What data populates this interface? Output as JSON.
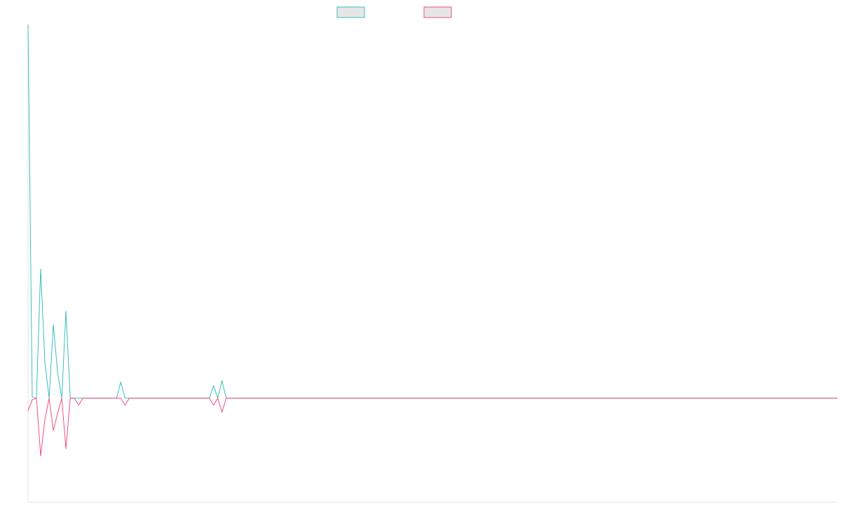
{
  "chart_data": {
    "type": "line",
    "title": "",
    "xlabel": "",
    "ylabel": "",
    "ylim": [
      -148,
      532
    ],
    "grid": false,
    "legend": {
      "placement": "top-center"
    },
    "x": [
      0,
      1,
      2,
      3,
      4,
      5,
      6,
      7,
      8,
      9,
      10,
      11,
      12,
      13,
      14,
      15,
      16,
      17,
      18,
      19,
      20,
      21,
      22,
      23,
      24,
      25,
      26,
      27,
      28,
      29,
      30,
      31,
      32,
      33,
      34,
      35,
      36,
      37,
      38,
      39,
      40,
      41,
      42,
      43,
      44,
      45,
      46,
      47,
      48,
      49,
      50,
      51,
      52,
      53,
      54,
      55,
      56,
      57,
      58,
      59,
      60,
      61,
      62,
      63,
      64,
      65,
      66,
      67,
      68,
      69,
      70,
      71,
      72,
      73,
      74,
      75,
      76,
      77,
      78,
      79,
      80,
      81,
      82,
      83,
      84,
      85,
      86,
      87,
      88,
      89,
      90,
      91,
      92,
      93,
      94,
      95,
      96,
      97,
      98,
      99,
      100,
      101,
      102,
      103,
      104,
      105,
      106,
      107,
      108,
      109,
      110,
      111,
      112,
      113,
      114,
      115,
      116,
      117,
      118,
      119,
      120,
      121,
      122,
      123,
      124,
      125,
      126,
      127,
      128,
      129,
      130,
      131,
      132,
      133,
      134,
      135,
      136,
      137,
      138,
      139,
      140,
      141,
      142,
      143,
      144,
      145,
      146,
      147,
      148,
      149,
      150,
      151,
      152,
      153,
      154,
      155,
      156,
      157,
      158,
      159,
      160,
      161,
      162,
      163,
      164,
      165,
      166,
      167,
      168,
      169,
      170,
      171,
      172,
      173,
      174,
      175,
      176,
      177,
      178,
      179,
      180,
      181,
      182,
      183,
      184,
      185,
      186,
      187,
      188,
      189,
      190,
      191,
      192
    ],
    "series": [
      {
        "color": "#3dbdbd",
        "values": [
          532,
          2,
          0,
          184,
          50,
          0,
          105,
          37,
          0,
          124,
          0,
          0,
          0,
          0,
          0,
          0,
          0,
          0,
          0,
          0,
          0,
          0,
          23,
          0,
          0,
          0,
          0,
          0,
          0,
          0,
          0,
          0,
          0,
          0,
          0,
          0,
          0,
          0,
          0,
          0,
          0,
          0,
          0,
          0,
          18,
          0,
          25,
          0,
          0,
          0,
          0,
          0,
          0,
          0,
          0,
          0,
          0,
          0,
          0,
          0,
          0,
          0,
          0,
          0,
          0,
          0,
          0,
          0,
          0,
          0,
          0,
          0,
          0,
          0,
          0,
          0,
          0,
          0,
          0,
          0,
          0,
          0,
          0,
          0,
          0,
          0,
          0,
          0,
          0,
          0,
          0,
          0,
          0,
          0,
          0,
          0,
          0,
          0,
          0,
          0,
          0,
          0,
          0,
          0,
          0,
          0,
          0,
          0,
          0,
          0,
          0,
          0,
          0,
          0,
          0,
          0,
          0,
          0,
          0,
          0,
          0,
          0,
          0,
          0,
          0,
          0,
          0,
          0,
          0,
          0,
          0,
          0,
          0,
          0,
          0,
          0,
          0,
          0,
          0,
          0,
          0,
          0,
          0,
          0,
          0,
          0,
          0,
          0,
          0,
          0,
          0,
          0,
          0,
          0,
          0,
          0,
          0,
          0,
          0,
          0,
          0,
          0,
          0,
          0,
          0,
          0,
          0,
          0,
          0,
          0,
          0,
          0,
          0,
          0,
          0,
          0,
          0,
          0,
          0,
          0,
          0,
          0,
          0,
          0,
          0,
          0,
          0,
          0,
          0,
          0,
          0,
          0,
          0
        ]
      },
      {
        "color": "#f0507a",
        "values": [
          -18,
          -2,
          0,
          -82,
          -30,
          0,
          -46,
          -22,
          0,
          -72,
          0,
          0,
          -10,
          0,
          0,
          0,
          0,
          0,
          0,
          0,
          0,
          0,
          0,
          -10,
          0,
          0,
          0,
          0,
          0,
          0,
          0,
          0,
          0,
          0,
          0,
          0,
          0,
          0,
          0,
          0,
          0,
          0,
          0,
          0,
          -10,
          0,
          -20,
          0,
          0,
          0,
          0,
          0,
          0,
          0,
          0,
          0,
          0,
          0,
          0,
          0,
          0,
          0,
          0,
          0,
          0,
          0,
          0,
          0,
          0,
          0,
          0,
          0,
          0,
          0,
          0,
          0,
          0,
          0,
          0,
          0,
          0,
          0,
          0,
          0,
          0,
          0,
          0,
          0,
          0,
          0,
          0,
          0,
          0,
          0,
          0,
          0,
          0,
          0,
          0,
          0,
          0,
          0,
          0,
          0,
          0,
          0,
          0,
          0,
          0,
          0,
          0,
          0,
          0,
          0,
          0,
          0,
          0,
          0,
          0,
          0,
          0,
          0,
          0,
          0,
          0,
          0,
          0,
          0,
          0,
          0,
          0,
          0,
          0,
          0,
          0,
          0,
          0,
          0,
          0,
          0,
          0,
          0,
          0,
          0,
          0,
          0,
          0,
          0,
          0,
          0,
          0,
          0,
          0,
          0,
          0,
          0,
          0,
          0,
          0,
          0,
          0,
          0,
          0,
          0,
          0,
          0,
          0,
          0,
          0,
          0,
          0,
          0,
          0,
          0,
          0,
          0,
          0,
          0,
          0,
          0,
          0,
          0,
          0,
          0,
          0,
          0,
          0,
          0,
          0,
          0,
          0,
          0,
          0
        ]
      }
    ]
  }
}
